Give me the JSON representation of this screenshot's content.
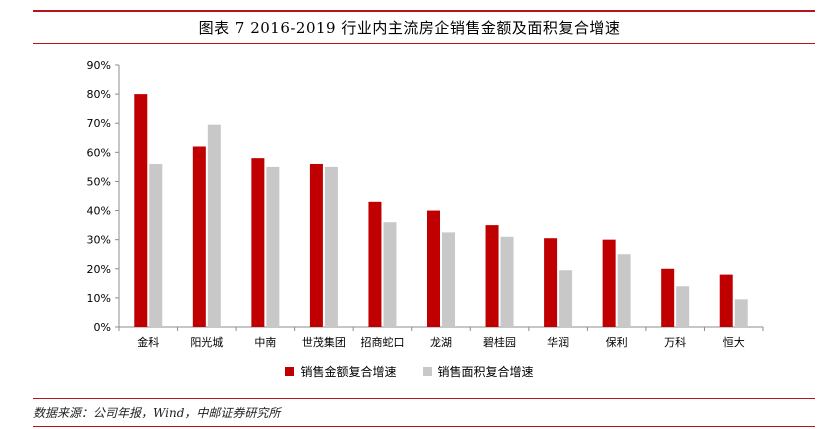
{
  "header": {
    "title": "图表 7 2016-2019 行业内主流房企销售金额及面积复合增速"
  },
  "footer": {
    "source": "数据来源：公司年报，Wind，中邮证券研究所"
  },
  "colors": {
    "accent": "#b5141b",
    "series1": "#c00000",
    "series2": "#c8c8c8"
  },
  "chart_data": {
    "type": "bar",
    "categories": [
      "金科",
      "阳光城",
      "中南",
      "世茂集团",
      "招商蛇口",
      "龙湖",
      "碧桂园",
      "华润",
      "保利",
      "万科",
      "恒大"
    ],
    "series": [
      {
        "name": "销售金额复合增速",
        "values": [
          80,
          62,
          58,
          56,
          43,
          40,
          35,
          30.5,
          30,
          20,
          18
        ]
      },
      {
        "name": "销售面积复合增速",
        "values": [
          56,
          69.5,
          55,
          55,
          36,
          32.5,
          31,
          19.5,
          25,
          14,
          9.5
        ]
      }
    ],
    "ylim": [
      0,
      90
    ],
    "yticks": [
      "0%",
      "10%",
      "20%",
      "30%",
      "40%",
      "50%",
      "60%",
      "70%",
      "80%",
      "90%"
    ],
    "grid": false,
    "legend_position": "bottom"
  }
}
